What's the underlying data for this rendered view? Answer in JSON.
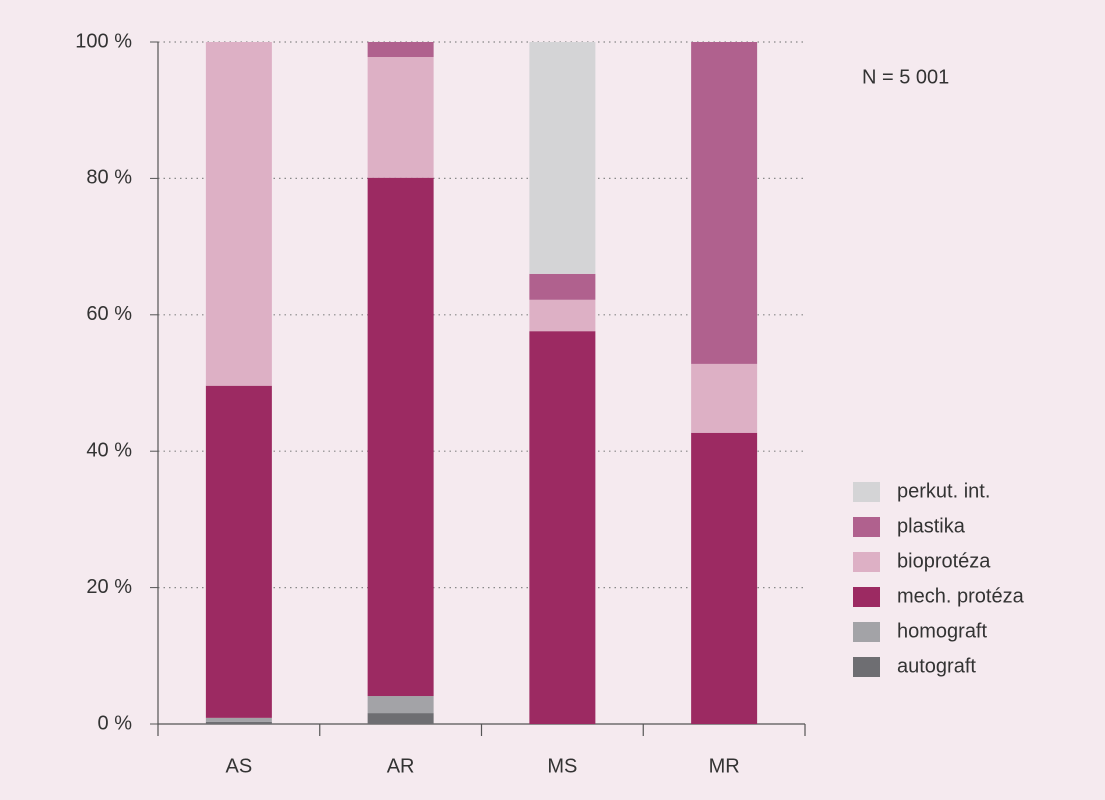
{
  "chart_data": {
    "type": "stacked_bar",
    "annotation": "N = 5 001",
    "categories": [
      "AS",
      "AR",
      "MS",
      "MR"
    ],
    "series": [
      {
        "name": "autograft",
        "color": "#6e6e72",
        "values": [
          0.3,
          1.6,
          0,
          0
        ]
      },
      {
        "name": "homograft",
        "color": "#a3a3a7",
        "values": [
          0.6,
          2.5,
          0,
          0
        ]
      },
      {
        "name": "mech. protéza",
        "color": "#9c2a62",
        "values": [
          48.7,
          76.0,
          57.6,
          42.7
        ]
      },
      {
        "name": "bioprotéza",
        "color": "#ddb0c5",
        "values": [
          50.4,
          17.7,
          4.6,
          10.1
        ]
      },
      {
        "name": "plastika",
        "color": "#b0618e",
        "values": [
          0,
          2.2,
          3.8,
          47.2
        ]
      },
      {
        "name": "perkut. int.",
        "color": "#d4d4d6",
        "values": [
          0,
          0,
          34.0,
          0
        ]
      }
    ],
    "ylim": [
      0,
      100
    ],
    "yticks": [
      {
        "value": 0,
        "label": "0 %"
      },
      {
        "value": 20,
        "label": "20 %"
      },
      {
        "value": 40,
        "label": "40 %"
      },
      {
        "value": 60,
        "label": "60 %"
      },
      {
        "value": 80,
        "label": "80 %"
      },
      {
        "value": 100,
        "label": "100 %"
      }
    ],
    "grid": true
  }
}
